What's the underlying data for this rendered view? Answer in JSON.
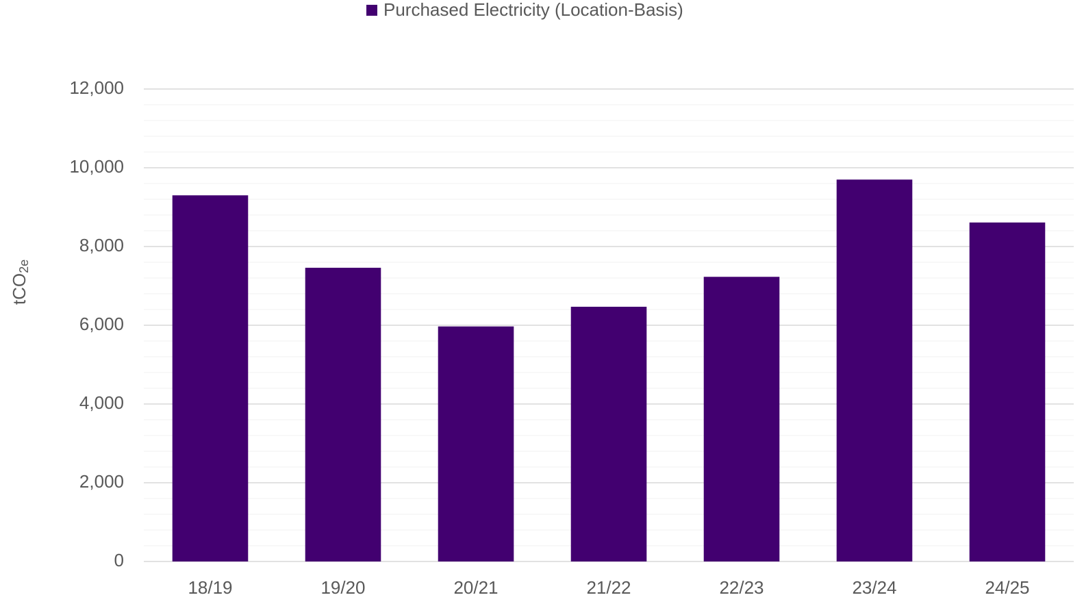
{
  "chart_data": {
    "type": "bar",
    "categories": [
      "18/19",
      "19/20",
      "20/21",
      "21/22",
      "22/23",
      "23/24",
      "24/25"
    ],
    "series": [
      {
        "name": "Purchased Electricity (Location-Basis)",
        "color": "#420070",
        "values": [
          9300,
          7460,
          5970,
          6470,
          7230,
          9700,
          8610
        ]
      }
    ],
    "ylabel": {
      "text": "tCO",
      "subscript": "2e"
    },
    "ylim": [
      0,
      12000
    ],
    "yticks": [
      0,
      {
        "value": 2000,
        "label": "2,000"
      },
      {
        "value": 4000,
        "label": "4,000"
      },
      {
        "value": 6000,
        "label": "6,000"
      },
      {
        "value": 8000,
        "label": "8,000"
      },
      {
        "value": 10000,
        "label": "10,000"
      },
      {
        "value": 12000,
        "label": "12,000"
      }
    ],
    "minor_yticks": [
      400,
      800,
      1200,
      1600,
      2400,
      2800,
      3200,
      3600,
      4400,
      4800,
      5200,
      5600,
      6400,
      6800,
      7200,
      7600,
      8400,
      8800,
      9200,
      9600,
      10400,
      10800,
      11200,
      11600
    ],
    "grid": true,
    "legend": "top"
  }
}
